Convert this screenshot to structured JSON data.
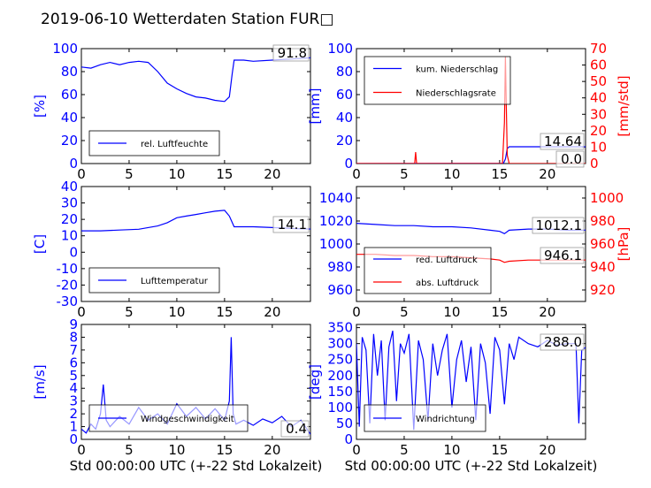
{
  "title": "2019-06-10 Wetterdaten Station FUR□",
  "colors": {
    "primary": "#0000ff",
    "secondary": "#ff0000",
    "text": "#000000"
  },
  "chart_data": [
    {
      "type": "line",
      "panel": "top-left",
      "ylabel": "[%]",
      "xlim": [
        0,
        24
      ],
      "ylim": [
        0,
        100
      ],
      "xticks": [
        0,
        5,
        10,
        15,
        20
      ],
      "yticks": [
        0,
        20,
        40,
        60,
        80,
        100
      ],
      "legend": [
        "rel. Luftfeuchte"
      ],
      "legend_placement": "lower-left",
      "value_label": "91.8",
      "series": [
        {
          "name": "rel. Luftfeuchte",
          "axis": "left",
          "color": "#0000ff",
          "x": [
            0,
            1,
            2,
            3,
            4,
            5,
            6,
            7,
            8,
            9,
            10,
            11,
            12,
            13,
            14,
            15,
            15.5,
            15.8,
            16,
            17,
            18,
            20,
            22,
            24
          ],
          "y": [
            84,
            83,
            86,
            88,
            86,
            88,
            89,
            88,
            80,
            70,
            65,
            61,
            58,
            57,
            55,
            54,
            58,
            78,
            90,
            90,
            89,
            90,
            91,
            92
          ]
        }
      ]
    },
    {
      "type": "line",
      "panel": "top-right",
      "ylabel": "[mm]",
      "y2label": "[mm/std]",
      "xlim": [
        0,
        24
      ],
      "ylim": [
        0,
        100
      ],
      "y2lim": [
        0,
        70
      ],
      "xticks": [
        0,
        5,
        10,
        15,
        20
      ],
      "yticks": [
        0,
        20,
        40,
        60,
        80,
        100
      ],
      "y2ticks": [
        0,
        10,
        20,
        30,
        40,
        50,
        60,
        70
      ],
      "legend": [
        "kum. Niederschlag",
        "Niederschlagsrate"
      ],
      "legend_placement": "upper-left",
      "value_labels": [
        "14.64",
        "0.0"
      ],
      "series": [
        {
          "name": "kum. Niederschlag",
          "axis": "left",
          "color": "#0000ff",
          "x": [
            0,
            15.4,
            15.6,
            15.8,
            16,
            24
          ],
          "y": [
            0,
            0.2,
            4,
            13,
            14.64,
            14.64
          ]
        },
        {
          "name": "Niederschlagsrate",
          "axis": "right",
          "color": "#ff0000",
          "x": [
            0,
            6.1,
            6.2,
            6.3,
            6.4,
            15.3,
            15.5,
            15.6,
            15.7,
            15.8,
            16,
            24
          ],
          "y": [
            0,
            0,
            7,
            0,
            0,
            0,
            25,
            65,
            35,
            5,
            0,
            0
          ]
        }
      ]
    },
    {
      "type": "line",
      "panel": "middle-left",
      "ylabel": "[C]",
      "xlim": [
        0,
        24
      ],
      "ylim": [
        -30,
        40
      ],
      "xticks": [
        0,
        5,
        10,
        15,
        20
      ],
      "yticks": [
        -30,
        -20,
        -10,
        0,
        10,
        20,
        30,
        40
      ],
      "legend": [
        "Lufttemperatur"
      ],
      "legend_placement": "lower-left",
      "value_label": "14.1",
      "series": [
        {
          "name": "Lufttemperatur",
          "axis": "left",
          "color": "#0000ff",
          "x": [
            0,
            2,
            4,
            6,
            8,
            9,
            10,
            11,
            12,
            13,
            14,
            15,
            15.5,
            16,
            18,
            20,
            22,
            24
          ],
          "y": [
            13,
            13,
            13.5,
            14,
            16,
            18,
            21,
            22,
            23,
            24,
            25,
            25.5,
            22,
            15.5,
            15.5,
            15,
            14.5,
            14.1
          ]
        }
      ]
    },
    {
      "type": "line",
      "panel": "middle-right",
      "ylabel": "",
      "y2label": "[hPa]",
      "xlim": [
        0,
        24
      ],
      "ylim": [
        950,
        1050
      ],
      "y2lim": [
        910,
        1010
      ],
      "xticks": [
        0,
        5,
        10,
        15,
        20
      ],
      "yticks": [
        960,
        980,
        1000,
        1020,
        1040
      ],
      "y2ticks": [
        920,
        940,
        960,
        980,
        1000
      ],
      "legend": [
        "red. Luftdruck",
        "abs. Luftdruck"
      ],
      "legend_placement": "lower-left",
      "value_labels": [
        "1012.1",
        "946.1"
      ],
      "series": [
        {
          "name": "red. Luftdruck",
          "axis": "left",
          "color": "#0000ff",
          "x": [
            0,
            2,
            4,
            6,
            8,
            10,
            12,
            14,
            15,
            15.5,
            16,
            18,
            20,
            22,
            24
          ],
          "y": [
            1018,
            1017,
            1016,
            1016,
            1015,
            1015,
            1014,
            1012,
            1011,
            1009,
            1012,
            1013,
            1013,
            1012,
            1012.1
          ]
        },
        {
          "name": "abs. Luftdruck",
          "axis": "right",
          "color": "#ff0000",
          "x": [
            0,
            2,
            4,
            6,
            8,
            10,
            12,
            14,
            15,
            15.5,
            16,
            18,
            20,
            22,
            24
          ],
          "y": [
            951,
            951,
            950,
            950,
            949,
            949,
            948,
            947,
            946,
            944,
            945,
            946,
            946,
            946,
            946.1
          ]
        }
      ]
    },
    {
      "type": "line",
      "panel": "bottom-left",
      "ylabel": "[m/s]",
      "xlabel": "Std 00:00:00 UTC (+-22 Std Lokalzeit)",
      "xlim": [
        0,
        24
      ],
      "ylim": [
        0,
        9
      ],
      "xticks": [
        0,
        5,
        10,
        15,
        20
      ],
      "yticks": [
        0,
        1,
        2,
        3,
        4,
        5,
        6,
        7,
        8,
        9
      ],
      "legend": [
        "Windgeschwindigkeit"
      ],
      "legend_placement": "lower-left",
      "value_label": "0.4",
      "series": [
        {
          "name": "Windgeschwindigkeit",
          "axis": "left",
          "color": "#0000ff",
          "x": [
            0,
            0.5,
            1,
            1.5,
            2,
            2.3,
            2.6,
            3,
            4,
            5,
            6,
            7,
            8,
            9,
            10,
            11,
            12,
            13,
            14,
            15,
            15.5,
            15.7,
            15.9,
            16.2,
            17,
            18,
            19,
            20,
            21,
            22,
            23,
            24
          ],
          "y": [
            0.8,
            0.5,
            1.2,
            0.8,
            2,
            4.3,
            1.5,
            1,
            1.8,
            1.2,
            2.5,
            1.5,
            2,
            1.2,
            2.8,
            1.8,
            2.5,
            1.6,
            2.4,
            1.5,
            3,
            8,
            2,
            1.2,
            1.5,
            1.1,
            1.6,
            1.3,
            1.8,
            1,
            1.5,
            0.4
          ]
        }
      ]
    },
    {
      "type": "line",
      "panel": "bottom-right",
      "ylabel": "[deg]",
      "xlabel": "Std 00:00:00 UTC (+-22 Std Lokalzeit)",
      "xlim": [
        0,
        24
      ],
      "ylim": [
        0,
        360
      ],
      "xticks": [
        0,
        5,
        10,
        15,
        20
      ],
      "yticks": [
        0,
        50,
        100,
        150,
        200,
        250,
        300,
        350
      ],
      "legend": [
        "Windrichtung"
      ],
      "legend_placement": "lower-left",
      "value_label": "288.0",
      "series": [
        {
          "name": "Windrichtung",
          "axis": "left",
          "color": "#0000ff",
          "x": [
            0,
            0.3,
            0.6,
            1,
            1.4,
            1.8,
            2.2,
            2.6,
            3,
            3.4,
            3.8,
            4.2,
            4.6,
            5,
            5.5,
            6,
            6.5,
            7,
            7.5,
            8,
            8.5,
            9,
            9.5,
            10,
            10.5,
            11,
            11.5,
            12,
            12.5,
            13,
            13.5,
            14,
            14.5,
            15,
            15.5,
            16,
            16.5,
            17,
            18,
            19,
            20,
            21,
            22,
            23,
            23.3,
            23.6,
            24
          ],
          "y": [
            300,
            40,
            320,
            280,
            50,
            330,
            200,
            310,
            60,
            290,
            340,
            120,
            300,
            270,
            330,
            30,
            310,
            250,
            60,
            300,
            200,
            280,
            330,
            100,
            250,
            310,
            180,
            290,
            60,
            300,
            240,
            80,
            320,
            280,
            110,
            300,
            250,
            320,
            300,
            290,
            310,
            295,
            300,
            300,
            50,
            280,
            288
          ]
        }
      ]
    }
  ]
}
